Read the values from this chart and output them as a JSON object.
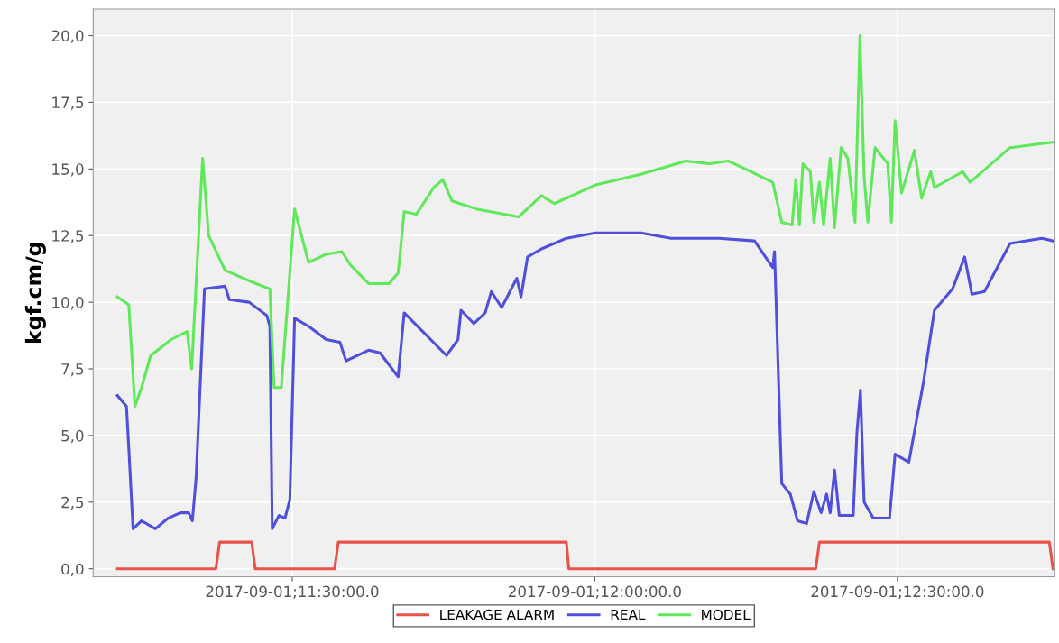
{
  "chart_data": {
    "type": "line",
    "ylabel": "kgf.cm/g",
    "xlim": [
      "2017-09-01T11:10:16",
      "2017-09-01T12:45:36"
    ],
    "ylim": [
      -0.3,
      21.0
    ],
    "xticks": [
      {
        "value": "2017-09-01T11:30:00",
        "label": "2017-09-01;11:30:00.0"
      },
      {
        "value": "2017-09-01T12:00:00",
        "label": "2017-09-01;12:00:00.0"
      },
      {
        "value": "2017-09-01T12:30:00",
        "label": "2017-09-01;12:30:00.0"
      }
    ],
    "yticks": [
      {
        "value": 0,
        "label": "0,0"
      },
      {
        "value": 2.5,
        "label": "2,5"
      },
      {
        "value": 5,
        "label": "5,0"
      },
      {
        "value": 7.5,
        "label": "7,5"
      },
      {
        "value": 10,
        "label": "10,0"
      },
      {
        "value": 12.5,
        "label": "12,5"
      },
      {
        "value": 15,
        "label": "15,0"
      },
      {
        "value": 17.5,
        "label": "17,5"
      },
      {
        "value": 20,
        "label": "20,0"
      }
    ],
    "grid": true,
    "legend": "bottom",
    "marker": "none",
    "line_style": "solid",
    "series": [
      {
        "name": "LEAKAGE ALARM",
        "color": "#e8524a",
        "x": [
          "2017-09-01T11:12:40",
          "2017-09-01T11:22:26",
          "2017-09-01T11:22:48",
          "2017-09-01T11:25:59",
          "2017-09-01T11:26:20",
          "2017-09-01T11:34:12",
          "2017-09-01T11:34:34",
          "2017-09-01T11:57:11",
          "2017-09-01T11:57:25",
          "2017-09-01T12:21:54",
          "2017-09-01T12:22:16",
          "2017-09-01T12:45:04",
          "2017-09-01T12:45:25"
        ],
        "values": [
          0,
          0,
          1.0,
          1.0,
          0,
          0,
          1.0,
          1.0,
          0,
          0,
          1.0,
          1.0,
          0
        ]
      },
      {
        "name": "REAL",
        "color": "#4f4fdc",
        "x": [
          "2017-09-01T11:12:40",
          "2017-09-01T11:13:34",
          "2017-09-01T11:13:48",
          "2017-09-01T11:14:13",
          "2017-09-01T11:15:04",
          "2017-09-01T11:16:26",
          "2017-09-01T11:17:42",
          "2017-09-01T11:18:54",
          "2017-09-01T11:19:44",
          "2017-09-01T11:20:06",
          "2017-09-01T11:20:28",
          "2017-09-01T11:21:18",
          "2017-09-01T11:23:20",
          "2017-09-01T11:23:46",
          "2017-09-01T11:25:44",
          "2017-09-01T11:27:29",
          "2017-09-01T11:27:47",
          "2017-09-01T11:28:01",
          "2017-09-01T11:28:41",
          "2017-09-01T11:29:17",
          "2017-09-01T11:29:46",
          "2017-09-01T11:30:14",
          "2017-09-01T11:31:37",
          "2017-09-01T11:33:22",
          "2017-09-01T11:34:44",
          "2017-09-01T11:35:20",
          "2017-09-01T11:37:34",
          "2017-09-01T11:38:42",
          "2017-09-01T11:40:30",
          "2017-09-01T11:41:06",
          "2017-09-01T11:45:18",
          "2017-09-01T11:46:26",
          "2017-09-01T11:46:44",
          "2017-09-01T11:48:00",
          "2017-09-01T11:49:08",
          "2017-09-01T11:49:44",
          "2017-09-01T11:50:46",
          "2017-09-01T11:52:16",
          "2017-09-01T11:52:41",
          "2017-09-01T11:53:20",
          "2017-09-01T11:54:43",
          "2017-09-01T11:57:11",
          "2017-09-01T12:00:04",
          "2017-09-01T12:04:34",
          "2017-09-01T12:07:34",
          "2017-09-01T12:12:18",
          "2017-09-01T12:15:50",
          "2017-09-01T12:17:38",
          "2017-09-01T12:17:49",
          "2017-09-01T12:18:32",
          "2017-09-01T12:19:23",
          "2017-09-01T12:20:06",
          "2017-09-01T12:21:00",
          "2017-09-01T12:21:43",
          "2017-09-01T12:22:26",
          "2017-09-01T12:22:59",
          "2017-09-01T12:23:20",
          "2017-09-01T12:23:46",
          "2017-09-01T12:24:14",
          "2017-09-01T12:25:37",
          "2017-09-01T12:25:59",
          "2017-09-01T12:26:20",
          "2017-09-01T12:26:42",
          "2017-09-01T12:27:36",
          "2017-09-01T12:29:13",
          "2017-09-01T12:29:46",
          "2017-09-01T12:31:08",
          "2017-09-01T12:32:35",
          "2017-09-01T12:33:40",
          "2017-09-01T12:35:28",
          "2017-09-01T12:36:40",
          "2017-09-01T12:37:23",
          "2017-09-01T12:38:38",
          "2017-09-01T12:41:10",
          "2017-09-01T12:44:20",
          "2017-09-01T12:45:25"
        ],
        "values": [
          6.5,
          6.1,
          4.5,
          1.5,
          1.8,
          1.5,
          1.9,
          2.1,
          2.1,
          1.8,
          3.4,
          10.5,
          10.6,
          10.1,
          10.0,
          9.5,
          9.1,
          1.5,
          2.0,
          1.9,
          2.6,
          9.4,
          9.1,
          8.6,
          8.5,
          7.8,
          8.2,
          8.1,
          7.2,
          9.6,
          8.0,
          8.6,
          9.7,
          9.2,
          9.6,
          10.4,
          9.8,
          10.9,
          10.2,
          11.7,
          12.0,
          12.4,
          12.6,
          12.6,
          12.4,
          12.4,
          12.3,
          11.3,
          11.9,
          3.2,
          2.8,
          1.8,
          1.7,
          2.9,
          2.1,
          2.8,
          2.1,
          3.7,
          2.0,
          2.0,
          5.1,
          6.7,
          2.5,
          1.9,
          1.9,
          4.3,
          4.0,
          7.0,
          9.7,
          10.5,
          11.7,
          10.3,
          10.4,
          12.2,
          12.4,
          12.3
        ]
      },
      {
        "name": "MODEL",
        "color": "#5ee85a",
        "x": [
          "2017-09-01T11:12:40",
          "2017-09-01T11:13:48",
          "2017-09-01T11:14:24",
          "2017-09-01T11:15:04",
          "2017-09-01T11:15:58",
          "2017-09-01T11:18:00",
          "2017-09-01T11:19:34",
          "2017-09-01T11:20:02",
          "2017-09-01T11:21:07",
          "2017-09-01T11:21:43",
          "2017-09-01T11:23:20",
          "2017-09-01T11:25:44",
          "2017-09-01T11:27:47",
          "2017-09-01T11:28:12",
          "2017-09-01T11:28:55",
          "2017-09-01T11:30:14",
          "2017-09-01T11:31:37",
          "2017-09-01T11:33:22",
          "2017-09-01T11:34:55",
          "2017-09-01T11:35:46",
          "2017-09-01T11:37:34",
          "2017-09-01T11:39:36",
          "2017-09-01T11:40:30",
          "2017-09-01T11:41:06",
          "2017-09-01T11:42:18",
          "2017-09-01T11:44:02",
          "2017-09-01T11:44:56",
          "2017-09-01T11:45:50",
          "2017-09-01T11:48:14",
          "2017-09-01T11:52:26",
          "2017-09-01T11:54:43",
          "2017-09-01T11:55:59",
          "2017-09-01T12:00:04",
          "2017-09-01T12:04:34",
          "2017-09-01T12:09:00",
          "2017-09-01T12:11:24",
          "2017-09-01T12:13:12",
          "2017-09-01T12:14:56",
          "2017-09-01T12:17:38",
          "2017-09-01T12:18:32",
          "2017-09-01T12:19:34",
          "2017-09-01T12:19:55",
          "2017-09-01T12:20:17",
          "2017-09-01T12:20:38",
          "2017-09-01T12:21:22",
          "2017-09-01T12:21:43",
          "2017-09-01T12:22:16",
          "2017-09-01T12:22:41",
          "2017-09-01T12:23:20",
          "2017-09-01T12:23:46",
          "2017-09-01T12:24:25",
          "2017-09-01T12:25:05",
          "2017-09-01T12:25:48",
          "2017-09-01T12:26:17",
          "2017-09-01T12:26:42",
          "2017-09-01T12:27:04",
          "2017-09-01T12:27:47",
          "2017-09-01T12:29:02",
          "2017-09-01T12:29:24",
          "2017-09-01T12:29:46",
          "2017-09-01T12:30:25",
          "2017-09-01T12:31:41",
          "2017-09-01T12:32:24",
          "2017-09-01T12:33:18",
          "2017-09-01T12:33:40",
          "2017-09-01T12:36:29",
          "2017-09-01T12:37:12",
          "2017-09-01T12:41:10",
          "2017-09-01T12:45:25"
        ],
        "values": [
          10.2,
          9.9,
          6.1,
          6.8,
          8.0,
          8.6,
          8.9,
          7.5,
          15.4,
          12.5,
          11.2,
          10.8,
          10.5,
          6.8,
          6.8,
          13.5,
          11.5,
          11.8,
          11.9,
          11.4,
          10.7,
          10.7,
          11.1,
          13.4,
          13.3,
          14.3,
          14.6,
          13.8,
          13.5,
          13.2,
          14.0,
          13.7,
          14.4,
          14.8,
          15.3,
          15.2,
          15.3,
          15.0,
          14.5,
          13.0,
          12.9,
          14.6,
          12.9,
          15.2,
          14.9,
          13.0,
          14.5,
          12.9,
          15.4,
          12.8,
          15.8,
          15.4,
          13.0,
          20.0,
          14.7,
          13.0,
          15.8,
          15.2,
          13.0,
          16.8,
          14.1,
          15.7,
          13.9,
          14.9,
          14.3,
          14.9,
          14.5,
          15.8,
          16.0
        ]
      }
    ]
  }
}
